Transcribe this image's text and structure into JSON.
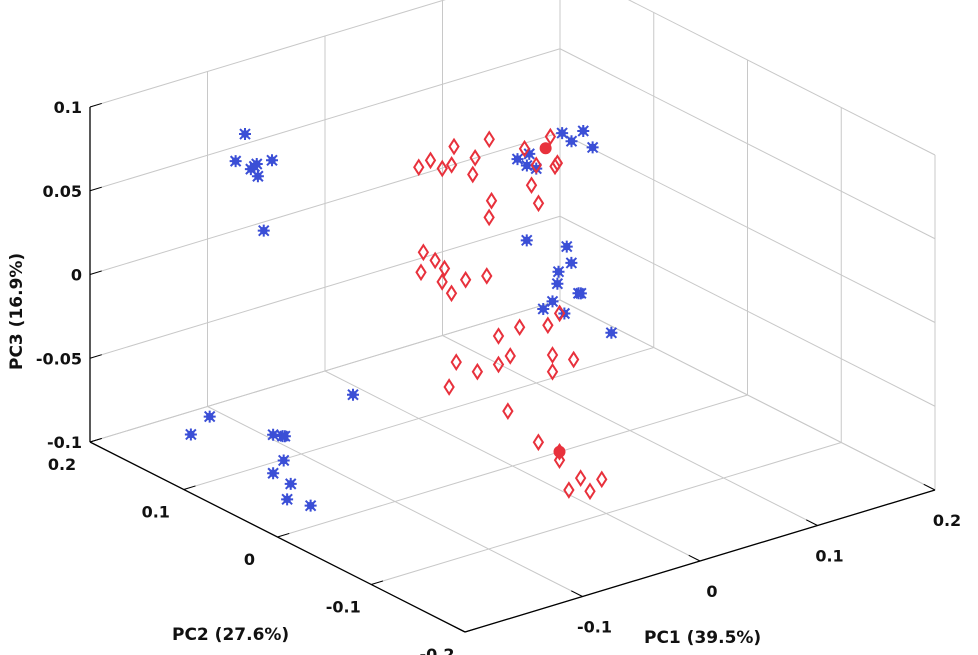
{
  "chart_data": {
    "type": "scatter",
    "projection": "3d",
    "grid": true,
    "xlabel": "PC1 (39.5%)",
    "ylabel": "PC2 (27.6%)",
    "zlabel": "PC3 (16.9%)",
    "xlim": [
      -0.2,
      0.2
    ],
    "ylim": [
      -0.2,
      0.2
    ],
    "zlim": [
      -0.1,
      0.1
    ],
    "x_ticks": [
      "-0.2",
      "-0.1",
      "0",
      "0.1",
      "0.2"
    ],
    "y_ticks": [
      "-0.2",
      "-0.1",
      "0",
      "0.1",
      "0.2"
    ],
    "z_ticks": [
      "-0.1",
      "-0.05",
      "0",
      "0.05",
      "0.1"
    ],
    "colors": {
      "series_a": "#3b4fd6",
      "series_b": "#e8313c",
      "axes": "#000000",
      "grid": "#c8c8c8"
    },
    "series": [
      {
        "marker": "filled-asterisk",
        "color": "#3b4fd6",
        "points": [
          [
            -0.1,
            0.16,
            0.074
          ],
          [
            -0.1,
            0.17,
            0.055
          ],
          [
            -0.095,
            0.16,
            0.052
          ],
          [
            -0.097,
            0.15,
            0.051
          ],
          [
            -0.092,
            0.16,
            0.053
          ],
          [
            -0.085,
            0.15,
            0.058
          ],
          [
            -0.09,
            0.16,
            0.054
          ],
          [
            -0.1,
            0.14,
            0.022
          ],
          [
            -0.17,
            0.13,
            -0.082
          ],
          [
            -0.15,
            0.135,
            -0.077
          ],
          [
            -0.1,
            0.12,
            -0.095
          ],
          [
            -0.1,
            0.13,
            -0.097
          ],
          [
            -0.09,
            0.13,
            -0.1
          ],
          [
            -0.095,
            0.125,
            -0.112
          ],
          [
            -0.1,
            0.13,
            -0.12
          ],
          [
            -0.093,
            0.12,
            -0.125
          ],
          [
            -0.12,
            0.09,
            -0.12
          ],
          [
            -0.1,
            0.09,
            -0.128
          ],
          [
            -0.04,
            0.12,
            -0.083
          ],
          [
            0.14,
            0.1,
            0.042
          ],
          [
            0.14,
            0.09,
            0.035
          ],
          [
            0.13,
            0.11,
            0.04
          ],
          [
            0.13,
            0.1,
            0.038
          ],
          [
            0.1,
            0.1,
            0.028
          ],
          [
            0.1,
            0.11,
            0.027
          ],
          [
            0.1,
            0.12,
            0.028
          ],
          [
            0.11,
            0.12,
            0.029
          ],
          [
            0.06,
            0.06,
            0.005
          ],
          [
            0.05,
            0.02,
            -0.018
          ],
          [
            0.09,
            0.05,
            -0.012
          ],
          [
            0.11,
            0.08,
            -0.015
          ],
          [
            0.095,
            0.07,
            -0.024
          ],
          [
            0.11,
            0.09,
            -0.04
          ],
          [
            0.12,
            0.08,
            -0.045
          ],
          [
            0.1,
            0.07,
            -0.05
          ],
          [
            0.09,
            0.08,
            -0.048
          ],
          [
            0.13,
            0.09,
            -0.05
          ],
          [
            0.14,
            0.07,
            -0.07
          ]
        ]
      },
      {
        "marker": "open-diamond",
        "color": "#e8313c",
        "points": [
          [
            0.0,
            0.1,
            0.05
          ],
          [
            0.01,
            0.1,
            0.052
          ],
          [
            0.02,
            0.09,
            0.05
          ],
          [
            0.03,
            0.1,
            0.056
          ],
          [
            0.04,
            0.09,
            0.05
          ],
          [
            0.02,
            0.1,
            0.045
          ],
          [
            0.03,
            0.08,
            0.045
          ],
          [
            0.06,
            0.1,
            0.054
          ],
          [
            0.03,
            0.06,
            0.035
          ],
          [
            0.02,
            0.05,
            0.03
          ],
          [
            0.09,
            0.1,
            0.042
          ],
          [
            0.1,
            0.08,
            0.035
          ],
          [
            0.1,
            0.1,
            0.03
          ],
          [
            0.12,
            0.11,
            0.04
          ],
          [
            0.11,
            0.09,
            0.032
          ],
          [
            0.08,
            0.08,
            0.028
          ],
          [
            0.07,
            0.06,
            0.025
          ],
          [
            -0.02,
            0.05,
            0.0
          ],
          [
            -0.01,
            0.07,
            0.005
          ],
          [
            0.0,
            0.05,
            -0.003
          ],
          [
            0.01,
            0.04,
            0.0
          ],
          [
            -0.03,
            0.06,
            0.005
          ],
          [
            -0.02,
            0.07,
            0.012
          ],
          [
            -0.01,
            0.06,
            0.003
          ],
          [
            -0.02,
            0.04,
            -0.004
          ],
          [
            0.03,
            0.03,
            -0.032
          ],
          [
            0.02,
            0.04,
            -0.038
          ],
          [
            0.0,
            0.06,
            -0.055
          ],
          [
            0.02,
            0.04,
            -0.055
          ],
          [
            0.03,
            0.04,
            -0.052
          ],
          [
            0.01,
            0.05,
            -0.06
          ],
          [
            0.05,
            0.02,
            -0.05
          ],
          [
            0.06,
            0.01,
            -0.052
          ],
          [
            0.05,
            0.02,
            -0.06
          ],
          [
            0.08,
            0.05,
            -0.04
          ],
          [
            0.07,
            0.05,
            -0.045
          ],
          [
            0.02,
            0.03,
            -0.08
          ],
          [
            0.03,
            0.01,
            -0.095
          ],
          [
            0.04,
            0.0,
            -0.1
          ],
          [
            0.04,
            -0.01,
            -0.12
          ],
          [
            0.05,
            -0.01,
            -0.115
          ],
          [
            0.05,
            -0.02,
            -0.12
          ],
          [
            0.06,
            -0.02,
            -0.115
          ],
          [
            -0.03,
            0.03,
            -0.055
          ],
          [
            0.04,
            0.0,
            -0.105
          ]
        ]
      },
      {
        "marker": "filled-circle",
        "color": "#e8313c",
        "points": [
          [
            0.1,
            0.09,
            0.043
          ],
          [
            0.04,
            0.0,
            -0.1
          ]
        ]
      }
    ]
  }
}
